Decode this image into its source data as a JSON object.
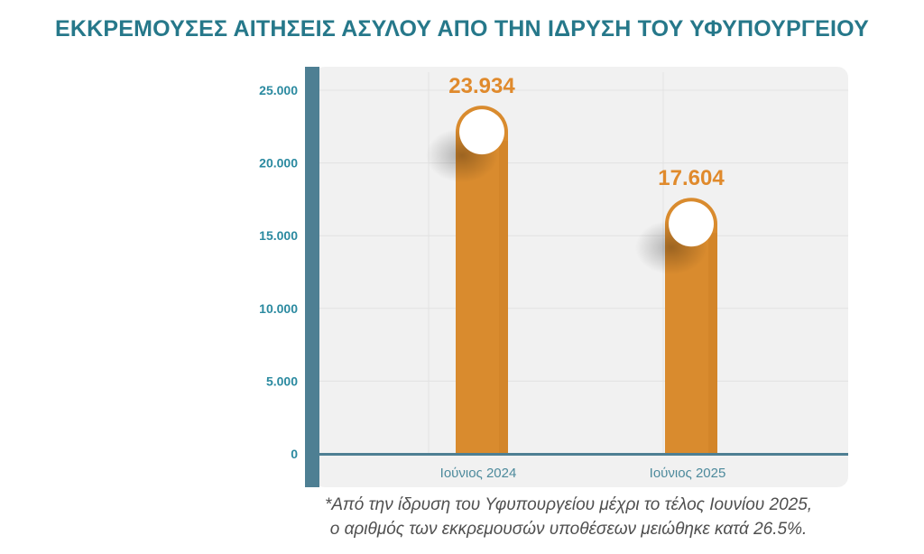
{
  "chart_data": {
    "type": "bar",
    "title": "ΕΚΚΡΕΜΟΥΣΕΣ ΑΙΤΗΣΕΙΣ ΑΣΥΛΟΥ ΑΠΟ ΤΗΝ ΙΔΡΥΣΗ ΤΟΥ ΥΦΥΠΟΥΡΓΕΙΟΥ",
    "categories": [
      "Ιούνιος 2024",
      "Ιούνιος 2025"
    ],
    "values": [
      23934,
      17604
    ],
    "value_labels": [
      "23.934",
      "17.604"
    ],
    "ylim": [
      0,
      25000
    ],
    "yticks": [
      0,
      5000,
      10000,
      15000,
      20000,
      25000
    ],
    "ytick_labels": [
      "0",
      "5.000",
      "10.000",
      "15.000",
      "20.000",
      "25.000"
    ],
    "xlabel": "",
    "ylabel": "",
    "grid": true
  },
  "footnote": {
    "line1": "*Από την ίδρυση του Υφυπουργείου μέχρι το τέλος Ιουνίου 2025,",
    "line2": "ο αριθμός των εκκρεμουσών υποθέσεων μειώθηκε κατά 26.5%."
  },
  "colors": {
    "title": "#26788a",
    "axis": "#4e7f93",
    "bar": "#d98b2e",
    "bar_dark": "#c97b1f",
    "value_label": "#e08a2c",
    "tick_label": "#2b8aa0",
    "category_label": "#4d8a9c",
    "panel": "#f1f1f1",
    "footnote": "#4f4f4f"
  }
}
